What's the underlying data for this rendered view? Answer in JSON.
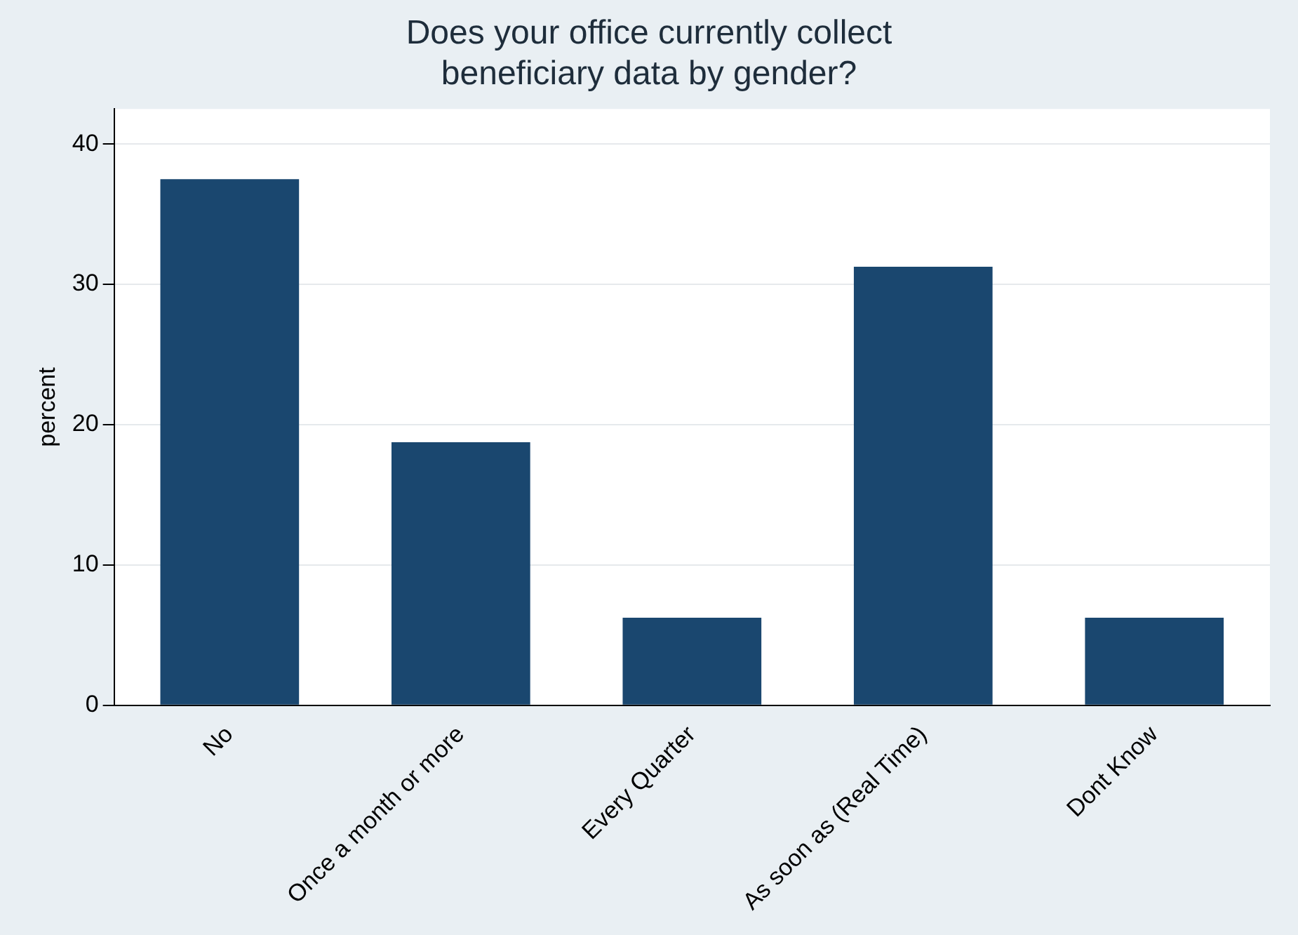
{
  "chart_data": {
    "type": "bar",
    "title": "Does your office currently collect\nbeneficiary data by gender?",
    "ylabel": "percent",
    "categories": [
      "No",
      "Once a month or more",
      "Every Quarter",
      "As soon as (Real Time)",
      "Dont Know"
    ],
    "values": [
      37.5,
      18.75,
      6.25,
      31.25,
      6.25
    ],
    "color": "#1a476f",
    "ylim": [
      0,
      42.5
    ],
    "yticks": [
      0,
      10,
      20,
      30,
      40
    ],
    "grid": "y",
    "legend": false
  }
}
